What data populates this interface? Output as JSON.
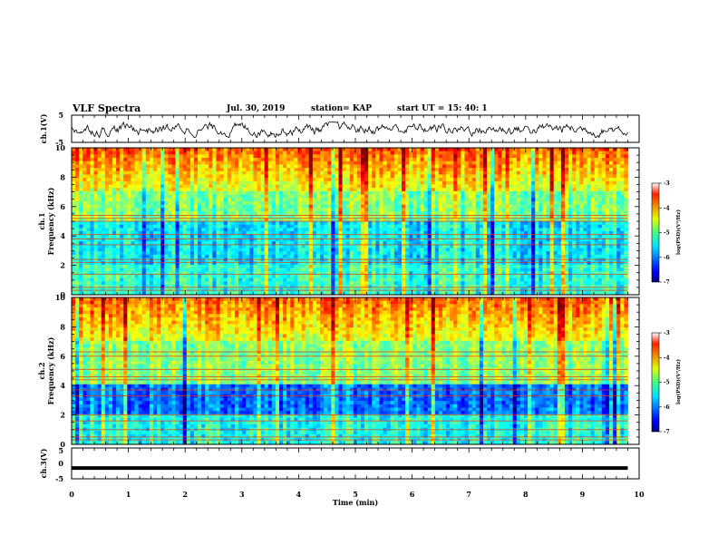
{
  "header": {
    "title": "VLF Spectra",
    "date": "Jul. 30, 2019",
    "station": "station= KAP",
    "start": "start  UT =   15: 40: 1"
  },
  "chart_data": [
    {
      "type": "line",
      "name": "ch1-waveform",
      "ylabel": "ch.1(V)",
      "ylim": [
        -5,
        5
      ],
      "yticks": [
        "5",
        "-5"
      ],
      "x_range_min": [
        0,
        9.8
      ],
      "y_range_description_values": [
        -3.2,
        2.5
      ]
    },
    {
      "type": "heatmap",
      "name": "ch1-spectrogram",
      "ylabel_line1": "ch.1",
      "ylabel_line2": "Frequency (kHz)",
      "ylim": [
        0,
        10
      ],
      "yticks": [
        "0",
        "2",
        "4",
        "6",
        "8",
        "10"
      ],
      "xlim": [
        0,
        9.8
      ],
      "colorbar": {
        "label": "log(PSD)(V²/Hz)",
        "range": [
          -7,
          -3
        ],
        "ticks": [
          "-3",
          "-4",
          "-5",
          "-6",
          "-7"
        ],
        "colormap": "jet"
      },
      "band_lines_khz": [
        0.3,
        0.5,
        1.4,
        2.2,
        2.4,
        3.4,
        3.8,
        4.1,
        5.0,
        5.2,
        5.4
      ]
    },
    {
      "type": "heatmap",
      "name": "ch2-spectrogram",
      "ylabel_line1": "ch.2",
      "ylabel_line2": "Frequency (kHz)",
      "ylim": [
        0,
        10
      ],
      "yticks": [
        "0",
        "2",
        "4",
        "6",
        "8",
        "10"
      ],
      "xlim": [
        0,
        9.8
      ],
      "colorbar": {
        "label": "log(PSD)(V²/Hz)",
        "range": [
          -7,
          -3
        ],
        "ticks": [
          "-3",
          "-4",
          "-5",
          "-6",
          "-7"
        ],
        "colormap": "jet"
      },
      "band_lines_khz": [
        0.3,
        0.5,
        1.0,
        1.6,
        2.0,
        3.3,
        3.7,
        4.4,
        4.6,
        5.1,
        6.0,
        6.3
      ]
    },
    {
      "type": "line",
      "name": "ch3-waveform",
      "ylabel": "ch.3(V)",
      "ylim": [
        -5,
        5
      ],
      "yticks": [
        "5",
        "0",
        "-5"
      ],
      "x": [
        0,
        9.8
      ],
      "y": [
        -1.5,
        -1.5
      ]
    }
  ],
  "xaxis": {
    "label": "Time (min)",
    "ticks": [
      "0",
      "1",
      "2",
      "3",
      "4",
      "5",
      "6",
      "7",
      "8",
      "9",
      "10"
    ],
    "xlim": [
      0,
      10
    ]
  }
}
